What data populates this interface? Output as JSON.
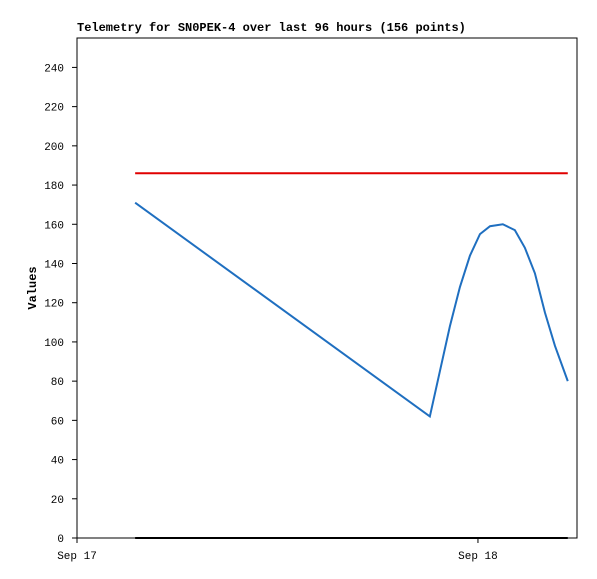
{
  "chart_data": {
    "type": "line",
    "title": "Telemetry for SN0PEK-4 over last 96 hours (156 points)",
    "y_label": "Values",
    "xlim": [
      0,
      1.247
    ],
    "xticks": [
      {
        "value": 0,
        "label": "Sep 17"
      },
      {
        "value": 1,
        "label": "Sep 18"
      }
    ],
    "ylim": [
      0,
      255
    ],
    "yticks": [
      0,
      20,
      40,
      60,
      80,
      100,
      120,
      140,
      160,
      180,
      200,
      220,
      240
    ],
    "series": [
      {
        "color": "#e00000",
        "x": [
          0.145,
          1.224
        ],
        "values": [
          186,
          186
        ]
      },
      {
        "color": "#000000",
        "x": [
          0.145,
          1.224
        ],
        "values": [
          0,
          0
        ]
      },
      {
        "color": "#1f6fc0",
        "x": [
          0.145,
          0.88,
          0.905,
          0.93,
          0.955,
          0.98,
          1.005,
          1.03,
          1.062,
          1.092,
          1.117,
          1.142,
          1.167,
          1.192,
          1.224
        ],
        "values": [
          171,
          62,
          85,
          108,
          128,
          144,
          155,
          159,
          160,
          157,
          148,
          135,
          115,
          98,
          80
        ]
      }
    ]
  }
}
